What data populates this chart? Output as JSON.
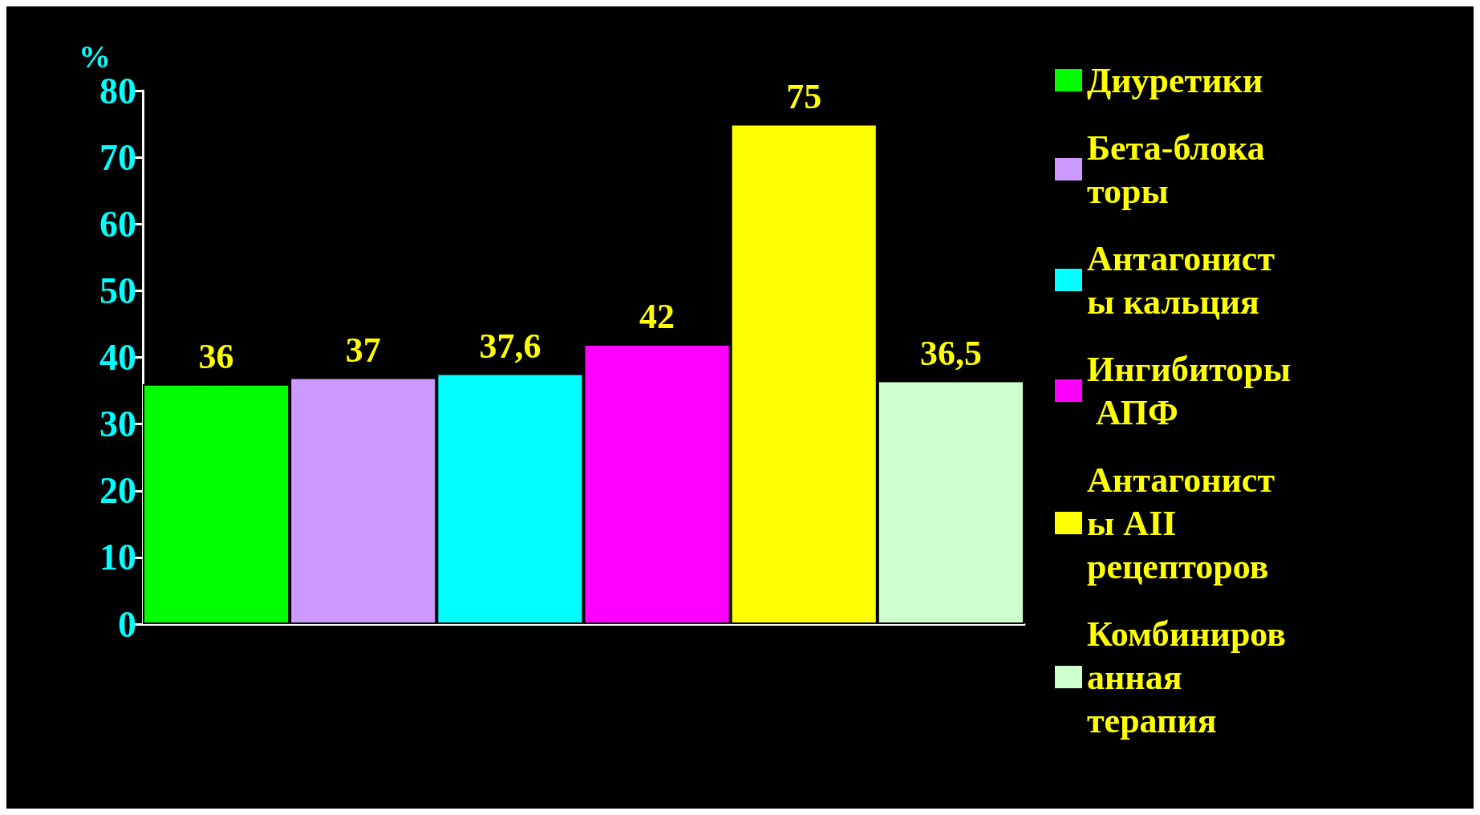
{
  "chart_data": {
    "type": "bar",
    "ylabel": "%",
    "categories": [
      null,
      null,
      null,
      null,
      null,
      null
    ],
    "series": [
      {
        "name": "Диуретики",
        "color": "#00ff00",
        "values": [
          36,
          null,
          null,
          null,
          null,
          null
        ],
        "value_labels": [
          "36",
          null,
          null,
          null,
          null,
          null
        ]
      },
      {
        "name": "Бета-блокаторы",
        "color": "#cc99ff",
        "values": [
          null,
          37,
          null,
          null,
          null,
          null
        ],
        "value_labels": [
          null,
          "37",
          null,
          null,
          null,
          null
        ]
      },
      {
        "name": "Антагонисты кальция",
        "color": "#00ffff",
        "values": [
          null,
          null,
          37.6,
          null,
          null,
          null
        ],
        "value_labels": [
          null,
          null,
          "37,6",
          null,
          null,
          null
        ]
      },
      {
        "name": "Ингибиторы АПФ",
        "color": "#ff00ff",
        "values": [
          null,
          null,
          null,
          42,
          null,
          null
        ],
        "value_labels": [
          null,
          null,
          null,
          "42",
          null,
          null
        ]
      },
      {
        "name": "Антагонисты АII рецепторов",
        "color": "#ffff00",
        "values": [
          null,
          null,
          null,
          null,
          75,
          null
        ],
        "value_labels": [
          null,
          null,
          null,
          null,
          "75",
          null
        ]
      },
      {
        "name": "Комбинированная терапия",
        "color": "#ccffcc",
        "values": [
          null,
          null,
          null,
          null,
          null,
          36.5
        ],
        "value_labels": [
          null,
          null,
          null,
          null,
          null,
          "36,5"
        ]
      }
    ],
    "ylim": [
      0,
      80
    ],
    "yticks": [
      0,
      10,
      20,
      30,
      40,
      50,
      60,
      70,
      80
    ],
    "grid": false,
    "legend": "right"
  }
}
